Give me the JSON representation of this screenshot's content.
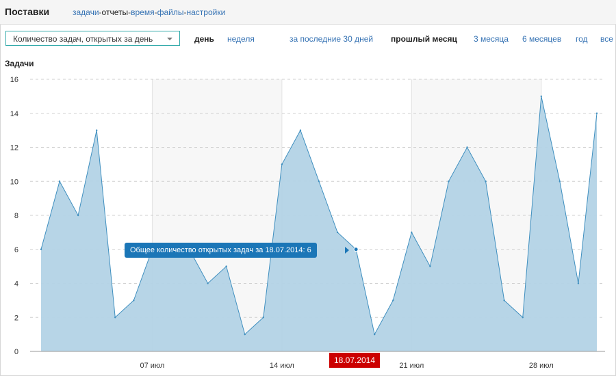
{
  "header": {
    "title": "Поставки",
    "nav": [
      {
        "label": "задачи",
        "current": false
      },
      {
        "label": "отчеты",
        "current": true
      },
      {
        "label": "время",
        "current": false
      },
      {
        "label": "файлы",
        "current": false
      },
      {
        "label": "настройки",
        "current": false
      }
    ],
    "separator": "-"
  },
  "controls": {
    "metric_select": "Количество задач, открытых за день",
    "granularity": [
      {
        "label": "день",
        "active": true
      },
      {
        "label": "неделя",
        "active": false
      }
    ],
    "ranges": [
      {
        "label": "за последние 30 дней",
        "active": false
      },
      {
        "label": "прошлый месяц",
        "active": true
      },
      {
        "label": "3 месяца",
        "active": false
      },
      {
        "label": "6 месяцев",
        "active": false
      },
      {
        "label": "год",
        "active": false
      },
      {
        "label": "все",
        "active": false
      }
    ]
  },
  "colors": {
    "area_fill": "#b3d3e6",
    "line": "#3f8fbf",
    "band": "#f7f7f7",
    "tooltip": "#1b76b7",
    "date_marker": "#cc0000"
  },
  "chart_data": {
    "type": "area",
    "ylabel": "Задачи",
    "ylim": [
      0,
      16
    ],
    "yticks": [
      0,
      2,
      4,
      6,
      8,
      10,
      12,
      14,
      16
    ],
    "x": [
      "2014-07-01",
      "2014-07-02",
      "2014-07-03",
      "2014-07-04",
      "2014-07-05",
      "2014-07-06",
      "2014-07-07",
      "2014-07-08",
      "2014-07-09",
      "2014-07-10",
      "2014-07-11",
      "2014-07-12",
      "2014-07-13",
      "2014-07-14",
      "2014-07-15",
      "2014-07-16",
      "2014-07-17",
      "2014-07-18",
      "2014-07-19",
      "2014-07-20",
      "2014-07-21",
      "2014-07-22",
      "2014-07-23",
      "2014-07-24",
      "2014-07-25",
      "2014-07-26",
      "2014-07-27",
      "2014-07-28",
      "2014-07-29",
      "2014-07-30",
      "2014-07-31"
    ],
    "values": [
      6,
      10,
      8,
      13,
      2,
      3,
      6,
      6,
      6,
      4,
      5,
      1,
      2,
      11,
      13,
      10,
      7,
      6,
      1,
      3,
      7,
      5,
      10,
      12,
      10,
      3,
      2,
      15,
      10,
      4,
      14
    ],
    "xtick_labels": [
      {
        "date": "2014-07-07",
        "label": "07 июл"
      },
      {
        "date": "2014-07-14",
        "label": "14 июл"
      },
      {
        "date": "2014-07-21",
        "label": "21 июл"
      },
      {
        "date": "2014-07-28",
        "label": "28 июл"
      }
    ],
    "week_bands": [
      [
        "2014-07-07",
        "2014-07-14"
      ],
      [
        "2014-07-21",
        "2014-07-28"
      ]
    ],
    "grid": true,
    "tooltip": {
      "date": "2014-07-18",
      "text": "Общее количество открытых задач за 18.07.2014: 6"
    },
    "date_marker": "18.07.2014"
  }
}
